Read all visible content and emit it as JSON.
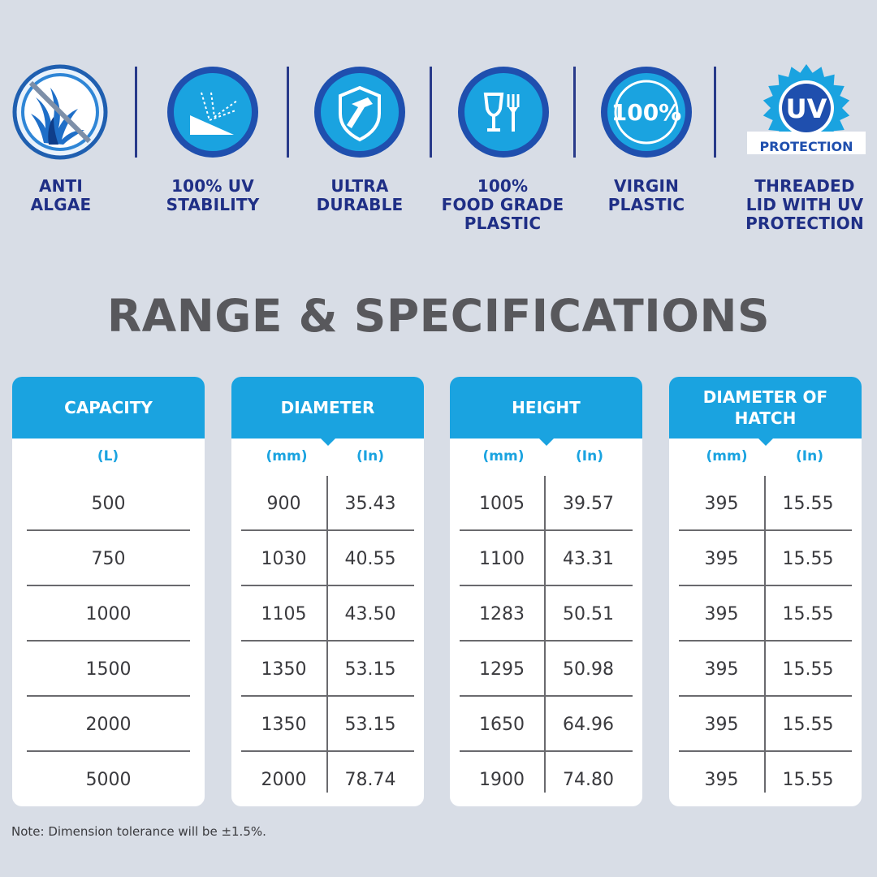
{
  "features": [
    {
      "icon": "anti-algae-icon",
      "label": "ANTI\nALGAE"
    },
    {
      "icon": "uv-stability-icon",
      "label": "100% UV\nSTABILITY"
    },
    {
      "icon": "ultra-durable-icon",
      "label": "ULTRA\nDURABLE"
    },
    {
      "icon": "food-grade-icon",
      "label": "100%\nFOOD GRADE\nPLASTIC"
    },
    {
      "icon": "virgin-plastic-icon",
      "label": "VIRGIN\nPLASTIC",
      "badge_text": "100%"
    },
    {
      "icon": "uv-protection-badge-icon",
      "label": "THREADED\nLID WITH UV\nPROTECTION",
      "badge_text": "UV",
      "badge_subtext": "PROTECTION"
    }
  ],
  "title": "RANGE & SPECIFICATIONS",
  "tables": {
    "capacity": {
      "header": "CAPACITY",
      "unit": "(L)",
      "values": [
        "500",
        "750",
        "1000",
        "1500",
        "2000",
        "5000"
      ]
    },
    "diameter": {
      "header": "DIAMETER",
      "units": [
        "(mm)",
        "(In)"
      ],
      "rows": [
        [
          "900",
          "35.43"
        ],
        [
          "1030",
          "40.55"
        ],
        [
          "1105",
          "43.50"
        ],
        [
          "1350",
          "53.15"
        ],
        [
          "1350",
          "53.15"
        ],
        [
          "2000",
          "78.74"
        ]
      ]
    },
    "height": {
      "header": "HEIGHT",
      "units": [
        "(mm)",
        "(In)"
      ],
      "rows": [
        [
          "1005",
          "39.57"
        ],
        [
          "1100",
          "43.31"
        ],
        [
          "1283",
          "50.51"
        ],
        [
          "1295",
          "50.98"
        ],
        [
          "1650",
          "64.96"
        ],
        [
          "1900",
          "74.80"
        ]
      ]
    },
    "hatch": {
      "header": "DIAMETER OF\nHATCH",
      "units": [
        "(mm)",
        "(In)"
      ],
      "rows": [
        [
          "395",
          "15.55"
        ],
        [
          "395",
          "15.55"
        ],
        [
          "395",
          "15.55"
        ],
        [
          "395",
          "15.55"
        ],
        [
          "395",
          "15.55"
        ],
        [
          "395",
          "15.55"
        ]
      ]
    }
  },
  "note": "Note: Dimension tolerance will be ±1.5%.",
  "colors": {
    "background": "#d8dde6",
    "accent_blue": "#1aa3e0",
    "navy": "#1f2f86",
    "title_gray": "#58585c"
  }
}
